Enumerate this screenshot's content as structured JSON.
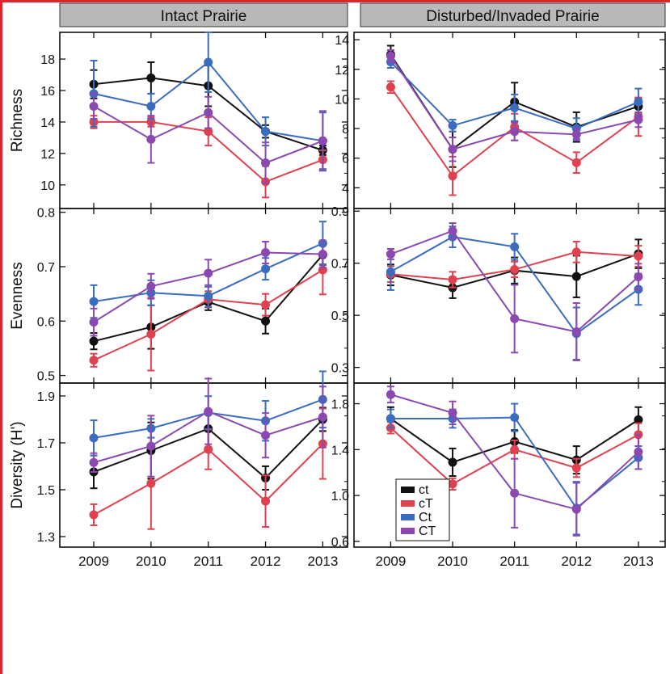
{
  "colors": {
    "frame": "#e0242c",
    "strip_fill": "#b9b9b9"
  },
  "panel_titles": [
    "Intact Prairie",
    "Disturbed/Invaded Prairie"
  ],
  "years": [
    "2009",
    "2010",
    "2011",
    "2012",
    "2013"
  ],
  "row_labels": [
    "Richness",
    "Evenness",
    "Diversity (H')"
  ],
  "legend": [
    {
      "key": "ct",
      "label": "ct",
      "color": "#111111"
    },
    {
      "key": "cT",
      "label": "cT",
      "color": "#e0414f"
    },
    {
      "key": "Ct",
      "label": "Ct",
      "color": "#3a6cc0"
    },
    {
      "key": "CT",
      "label": "CT",
      "color": "#8a48b0"
    }
  ],
  "chart_data": [
    {
      "type": "line",
      "title": "Intact Prairie",
      "ylabel": "Richness",
      "ylim": [
        8.5,
        19.7
      ],
      "yticks": [
        "10",
        "12",
        "14",
        "16",
        "18"
      ],
      "x": [
        "2009",
        "2010",
        "2011",
        "2012",
        "2013"
      ],
      "series": [
        {
          "name": "ct",
          "values": [
            16.4,
            16.8,
            16.3,
            13.4,
            12.2
          ],
          "err": [
            0.9,
            1.0,
            1.3,
            0.4,
            0.3
          ]
        },
        {
          "name": "cT",
          "values": [
            14.0,
            14.0,
            13.4,
            10.2,
            11.6
          ],
          "err": [
            0.4,
            0.3,
            0.9,
            1.0,
            0.6
          ]
        },
        {
          "name": "Ct",
          "values": [
            15.8,
            15.0,
            17.8,
            13.4,
            12.8
          ],
          "err": [
            2.1,
            0.8,
            1.9,
            0.9,
            1.8
          ]
        },
        {
          "name": "CT",
          "values": [
            15.0,
            12.9,
            14.6,
            11.4,
            12.8
          ],
          "err": [
            0.8,
            1.5,
            1.0,
            1.3,
            1.9
          ]
        }
      ]
    },
    {
      "type": "line",
      "title": "Disturbed/Invaded Prairie",
      "ylabel": "",
      "ylim": [
        2.6,
        14.5
      ],
      "yticks": [
        "4",
        "6",
        "8",
        "10",
        "12",
        "14"
      ],
      "x": [
        "2009",
        "2010",
        "2011",
        "2012",
        "2013"
      ],
      "series": [
        {
          "name": "ct",
          "values": [
            13.0,
            6.6,
            9.8,
            8.1,
            9.5
          ],
          "err": [
            0.6,
            1.2,
            1.3,
            1.0,
            0.5
          ]
        },
        {
          "name": "cT",
          "values": [
            10.8,
            4.8,
            8.1,
            5.7,
            8.8
          ],
          "err": [
            0.4,
            1.3,
            0.9,
            0.7,
            1.3
          ]
        },
        {
          "name": "Ct",
          "values": [
            12.5,
            8.2,
            9.4,
            8.0,
            9.8
          ],
          "err": [
            0.4,
            0.4,
            0.9,
            0.7,
            0.9
          ]
        },
        {
          "name": "CT",
          "values": [
            12.9,
            6.6,
            7.8,
            7.6,
            8.6
          ],
          "err": [
            0.4,
            0.8,
            0.6,
            0.4,
            0.5
          ]
        }
      ]
    },
    {
      "type": "line",
      "title": "",
      "ylabel": "Evenness",
      "ylim": [
        0.486,
        0.807
      ],
      "yticks": [
        "0.5",
        "0.6",
        "0.7",
        "0.8"
      ],
      "x": [
        "2009",
        "2010",
        "2011",
        "2012",
        "2013"
      ],
      "series": [
        {
          "name": "ct",
          "values": [
            0.563,
            0.589,
            0.635,
            0.6,
            0.722
          ],
          "err": [
            0.015,
            0.04,
            0.015,
            0.023,
            0.018
          ]
        },
        {
          "name": "cT",
          "values": [
            0.528,
            0.576,
            0.64,
            0.63,
            0.694
          ],
          "err": [
            0.012,
            0.067,
            0.015,
            0.02,
            0.045
          ]
        },
        {
          "name": "Ct",
          "values": [
            0.636,
            0.652,
            0.646,
            0.696,
            0.743
          ],
          "err": [
            0.03,
            0.023,
            0.02,
            0.02,
            0.04
          ]
        },
        {
          "name": "CT",
          "values": [
            0.598,
            0.664,
            0.688,
            0.726,
            0.723
          ],
          "err": [
            0.025,
            0.023,
            0.025,
            0.02,
            0.025
          ]
        }
      ]
    },
    {
      "type": "line",
      "title": "",
      "ylabel": "",
      "ylim": [
        0.24,
        0.91
      ],
      "yticks": [
        "0.3",
        "0.5",
        "0.7",
        "0.9"
      ],
      "x": [
        "2009",
        "2010",
        "2011",
        "2012",
        "2013"
      ],
      "series": [
        {
          "name": "ct",
          "values": [
            0.655,
            0.606,
            0.672,
            0.649,
            0.736
          ],
          "err": [
            0.04,
            0.04,
            0.05,
            0.08,
            0.055
          ]
        },
        {
          "name": "cT",
          "values": [
            0.658,
            0.637,
            0.676,
            0.743,
            0.727
          ],
          "err": [
            0.03,
            0.03,
            0.03,
            0.04,
            0.04
          ]
        },
        {
          "name": "Ct",
          "values": [
            0.667,
            0.801,
            0.763,
            0.43,
            0.6
          ],
          "err": [
            0.07,
            0.04,
            0.05,
            0.1,
            0.06
          ]
        },
        {
          "name": "CT",
          "values": [
            0.735,
            0.824,
            0.487,
            0.437,
            0.648
          ],
          "err": [
            0.02,
            0.03,
            0.13,
            0.11,
            0.05
          ]
        }
      ]
    },
    {
      "type": "line",
      "title": "",
      "ylabel": "Diversity (H')",
      "ylim": [
        1.255,
        1.955
      ],
      "yticks": [
        "1.3",
        "1.5",
        "1.7",
        "1.9"
      ],
      "x": [
        "2009",
        "2010",
        "2011",
        "2012",
        "2013"
      ],
      "series": [
        {
          "name": "ct",
          "values": [
            1.576,
            1.667,
            1.76,
            1.55,
            1.8
          ],
          "err": [
            0.07,
            0.12,
            0.08,
            0.05,
            0.05
          ]
        },
        {
          "name": "cT",
          "values": [
            1.393,
            1.527,
            1.672,
            1.451,
            1.696
          ],
          "err": [
            0.045,
            0.195,
            0.085,
            0.11,
            0.15
          ]
        },
        {
          "name": "Ct",
          "values": [
            1.721,
            1.762,
            1.829,
            1.794,
            1.885
          ],
          "err": [
            0.075,
            0.04,
            0.07,
            0.085,
            0.12
          ]
        },
        {
          "name": "CT",
          "values": [
            1.616,
            1.686,
            1.834,
            1.732,
            1.81
          ],
          "err": [
            0.04,
            0.13,
            0.14,
            0.095,
            0.13
          ]
        }
      ]
    },
    {
      "type": "line",
      "title": "",
      "ylabel": "",
      "ylim": [
        0.55,
        1.98
      ],
      "yticks": [
        "0.6",
        "1.0",
        "1.4",
        "1.8"
      ],
      "x": [
        "2009",
        "2010",
        "2011",
        "2012",
        "2013"
      ],
      "series": [
        {
          "name": "ct",
          "values": [
            1.67,
            1.29,
            1.47,
            1.31,
            1.66
          ],
          "err": [
            0.1,
            0.12,
            0.1,
            0.12,
            0.11
          ]
        },
        {
          "name": "cT",
          "values": [
            1.59,
            1.1,
            1.4,
            1.24,
            1.53
          ],
          "err": [
            0.05,
            0.05,
            0.08,
            0.08,
            0.1
          ]
        },
        {
          "name": "Ct",
          "values": [
            1.67,
            1.67,
            1.68,
            0.89,
            1.33
          ],
          "err": [
            0.08,
            0.08,
            0.12,
            0.23,
            0.1
          ]
        },
        {
          "name": "CT",
          "values": [
            1.88,
            1.72,
            1.02,
            0.88,
            1.38
          ],
          "err": [
            0.07,
            0.1,
            0.3,
            0.23,
            0.15
          ]
        }
      ]
    }
  ]
}
